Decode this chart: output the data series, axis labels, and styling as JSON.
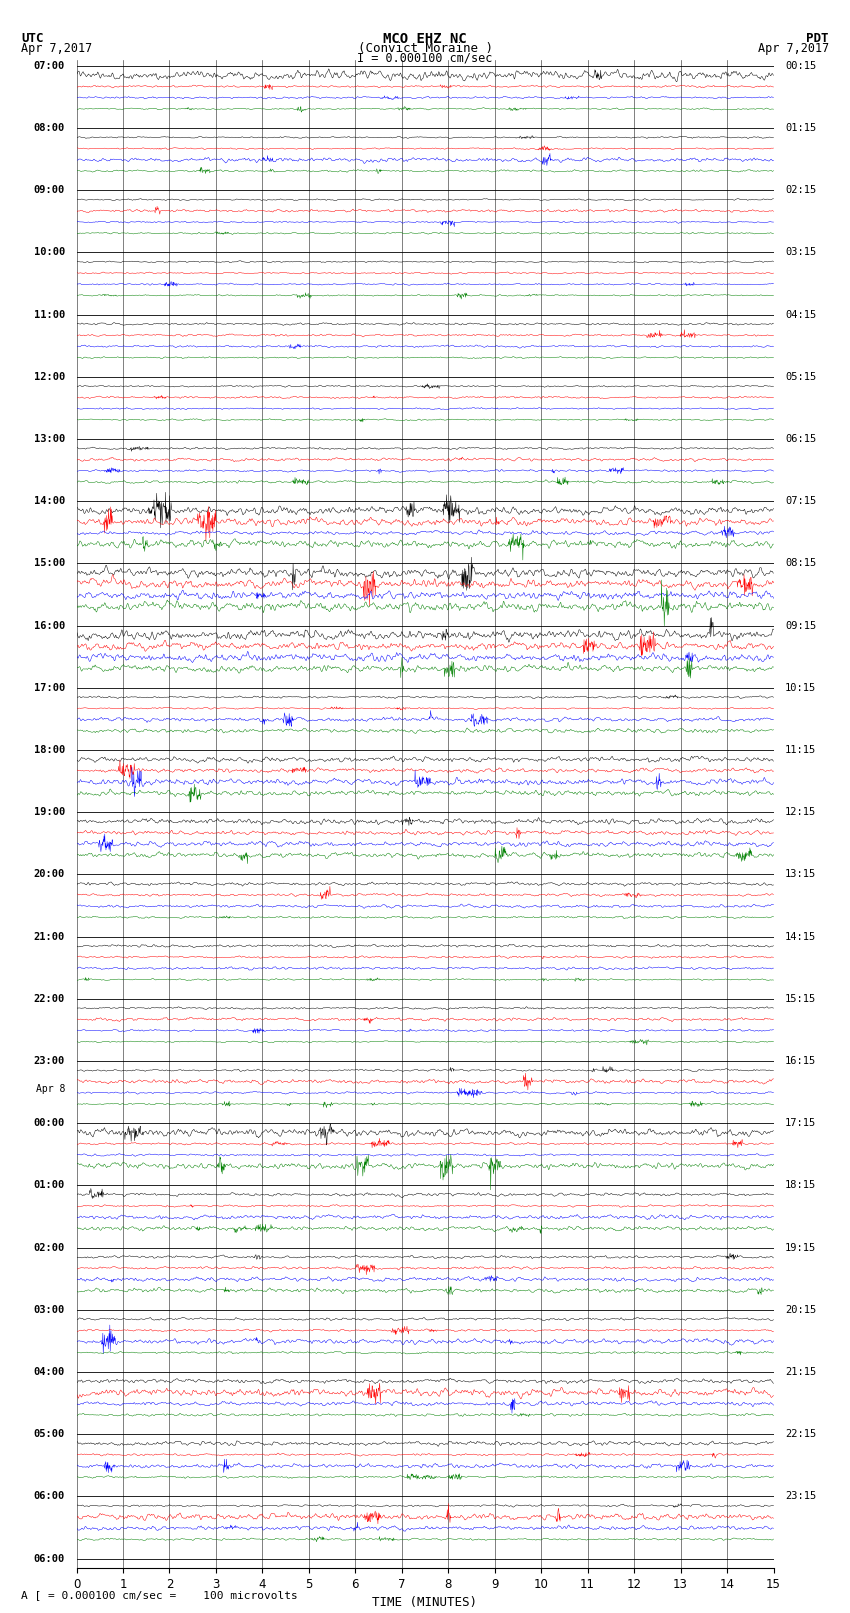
{
  "title_line1": "MCO EHZ NC",
  "title_line2": "(Convict Moraine )",
  "scale_label": "I = 0.000100 cm/sec",
  "utc_label": "UTC",
  "utc_date": "Apr 7,2017",
  "pdt_label": "PDT",
  "pdt_date": "Apr 7,2017",
  "footer_label": "A [ = 0.000100 cm/sec =    100 microvolts",
  "xlabel": "TIME (MINUTES)",
  "xticks": [
    0,
    1,
    2,
    3,
    4,
    5,
    6,
    7,
    8,
    9,
    10,
    11,
    12,
    13,
    14,
    15
  ],
  "trace_colors": [
    "black",
    "red",
    "blue",
    "green"
  ],
  "bg_color": "#ffffff",
  "fig_width": 8.5,
  "fig_height": 16.13,
  "left_label_times_utc": [
    "07:00",
    "08:00",
    "09:00",
    "10:00",
    "11:00",
    "12:00",
    "13:00",
    "14:00",
    "15:00",
    "16:00",
    "17:00",
    "18:00",
    "19:00",
    "20:00",
    "21:00",
    "22:00",
    "23:00",
    "00:00",
    "01:00",
    "02:00",
    "03:00",
    "04:00",
    "05:00",
    "06:00"
  ],
  "right_label_times_pdt": [
    "00:15",
    "01:15",
    "02:15",
    "03:15",
    "04:15",
    "05:15",
    "06:15",
    "07:15",
    "08:15",
    "09:15",
    "10:15",
    "11:15",
    "12:15",
    "13:15",
    "14:15",
    "15:15",
    "16:15",
    "17:15",
    "18:15",
    "19:15",
    "20:15",
    "21:15",
    "22:15",
    "23:15"
  ],
  "num_rows": 24,
  "traces_per_row": 4,
  "apr8_row": 17
}
